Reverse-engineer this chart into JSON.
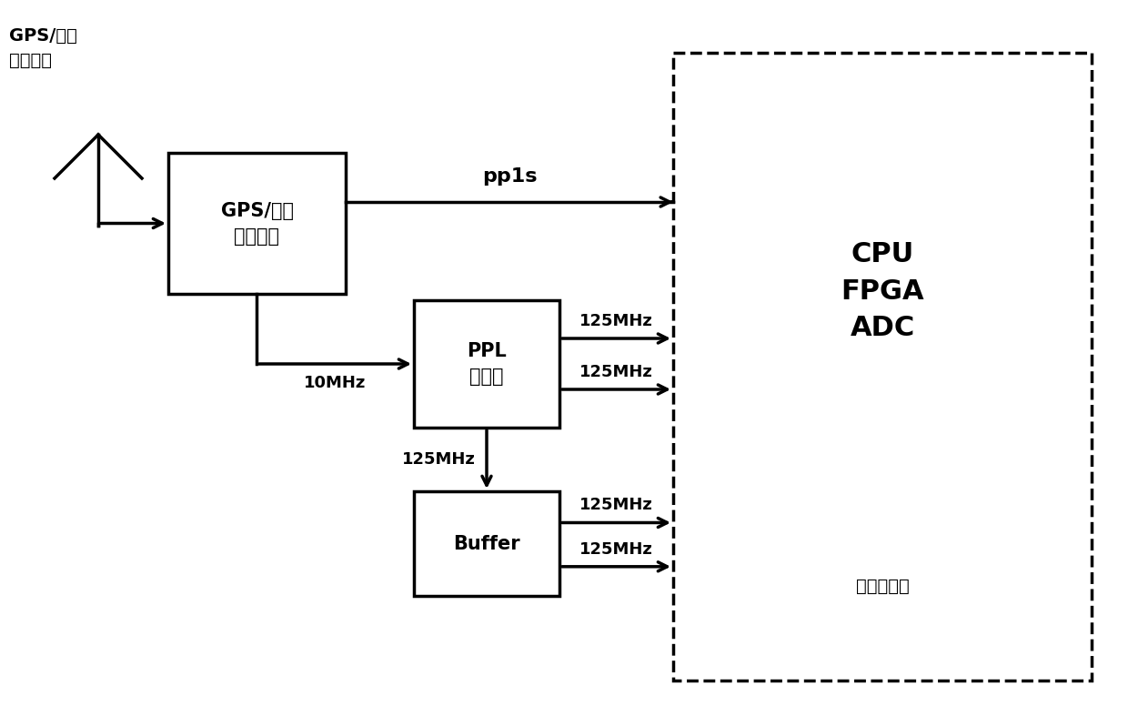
{
  "bg_color": "#ffffff",
  "line_color": "#000000",
  "text_color": "#000000",
  "font_size_label": 13,
  "font_size_box": 15,
  "font_size_cpu": 22,
  "font_size_sublabel": 14,
  "font_size_antenna": 14,
  "font_size_pp1s": 16,
  "antenna_label": "GPS/北斗\n接收天线",
  "gps_box_label": "GPS/北斗\n时钟模块",
  "ppl_box_label": "PPL\n锁相环",
  "buffer_box_label": "Buffer",
  "cpu_box_label": "CPU\nFPGA\nADC",
  "cpu_sublabel": "短波接收机",
  "pp1s_label": "pp1s",
  "mhz_10_label": "10MHz",
  "mhz_125_labels": [
    "125MHz",
    "125MHz",
    "125MHz",
    "125MHz",
    "125MHz"
  ]
}
